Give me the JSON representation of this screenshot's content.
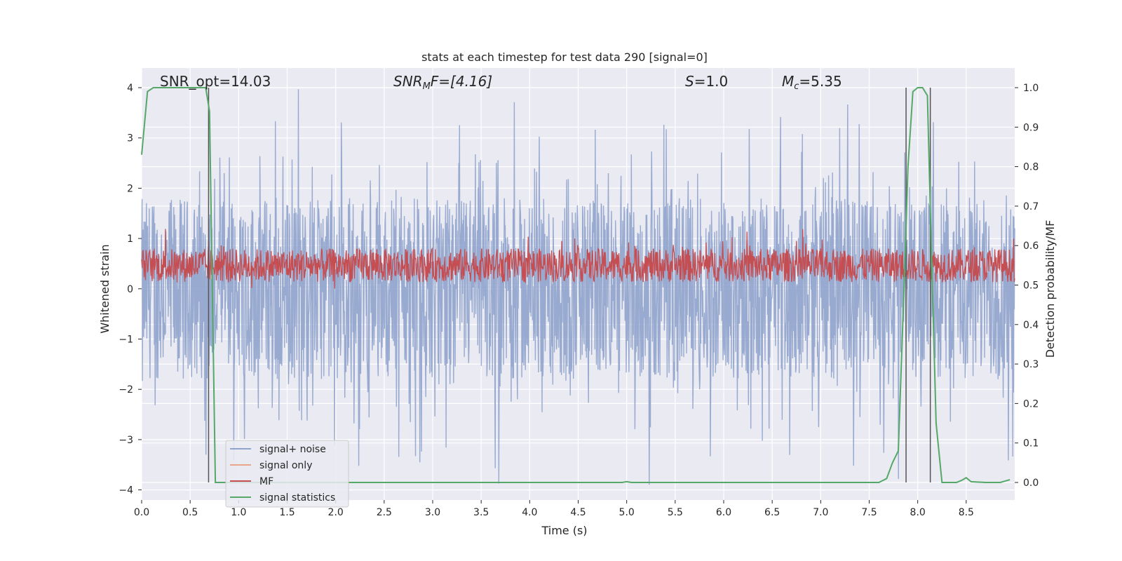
{
  "chart_data": {
    "type": "line",
    "title": "stats at each timestep for test data 290 [signal=0]",
    "xlabel": "Time (s)",
    "ylabel": "Whitened strain",
    "ylabel_right": "Detection probability/MF",
    "xlim": [
      0.0,
      9.0
    ],
    "ylim": [
      -4.3,
      4.4
    ],
    "ylim_right": [
      -0.05,
      1.04
    ],
    "x_ticks": [
      0.0,
      0.5,
      1.0,
      1.5,
      2.0,
      2.5,
      3.0,
      3.5,
      4.0,
      4.5,
      5.0,
      5.5,
      6.0,
      6.5,
      7.0,
      7.5,
      8.0,
      8.5
    ],
    "x_tick_labels": [
      "0.0",
      "0.5",
      "1.0",
      "1.5",
      "2.0",
      "2.5",
      "3.0",
      "3.5",
      "4.0",
      "4.5",
      "5.0",
      "5.5",
      "6.0",
      "6.5",
      "7.0",
      "7.5",
      "8.0",
      "8.5"
    ],
    "y_ticks": [
      4,
      3,
      2,
      1,
      0,
      -1,
      -2,
      -3,
      -4
    ],
    "y_tick_labels": [
      "4",
      "3",
      "2",
      "1",
      "0",
      "−1",
      "−2",
      "−3",
      "−4"
    ],
    "y_right_ticks": [
      1.0,
      0.9,
      0.8,
      0.7,
      0.6,
      0.5,
      0.4,
      0.3,
      0.2,
      0.1,
      0.0
    ],
    "y_right_tick_labels": [
      "1.0",
      "0.9",
      "0.8",
      "0.7",
      "0.6",
      "0.5",
      "0.4",
      "0.3",
      "0.2",
      "0.1",
      "0.0"
    ],
    "grid": true,
    "legend_position": "lower-left",
    "annotations": {
      "snr_opt": "SNR_opt=14.03",
      "snr_mf_base": "SNR",
      "snr_mf_sub": "M",
      "snr_mf_rest": "F=[4.16]",
      "s_base": "S",
      "s_rest": "=1.0",
      "mc_base": "M",
      "mc_sub": "c",
      "mc_rest": "=5.35"
    },
    "series": [
      {
        "name": "signal+ noise",
        "color": "#8fa3cc",
        "description": "whitened strain noise, roughly ±2 envelope with peaks up to about 4 and down to about -3.9",
        "envelope_upper": 2.2,
        "envelope_lower": -1.9,
        "peak_max": 4.0,
        "peak_min": -3.9
      },
      {
        "name": "signal only",
        "color": "#e8a58a",
        "values": []
      },
      {
        "name": "MF",
        "color": "#c44e52",
        "axis": "right",
        "band": [
          0.5,
          0.6
        ]
      },
      {
        "name": "signal statistics",
        "color": "#55a868",
        "axis": "right",
        "x": [
          0.0,
          0.06,
          0.12,
          0.3,
          0.45,
          0.6,
          0.66,
          0.7,
          0.76,
          0.85,
          1.5,
          3.0,
          4.5,
          4.95,
          5.0,
          5.05,
          6.0,
          7.0,
          7.6,
          7.68,
          7.74,
          7.8,
          7.86,
          7.9,
          7.95,
          8.0,
          8.05,
          8.1,
          8.14,
          8.19,
          8.25,
          8.3,
          8.4,
          8.45,
          8.5,
          8.55,
          8.7,
          8.85,
          8.95
        ],
        "y": [
          0.83,
          0.99,
          1.0,
          1.0,
          1.0,
          1.0,
          1.0,
          0.94,
          0.0,
          0.0,
          0.0,
          0.0,
          0.0,
          0.0,
          0.002,
          0.0,
          0.0,
          0.0,
          0.0,
          0.01,
          0.05,
          0.08,
          0.5,
          0.8,
          0.99,
          1.0,
          1.0,
          0.98,
          0.6,
          0.15,
          0.0,
          0.0,
          0.0,
          0.005,
          0.012,
          0.002,
          0.0,
          0.0,
          0.007
        ]
      }
    ],
    "vertical_lines_x": [
      0.69,
      7.88,
      8.13
    ]
  }
}
